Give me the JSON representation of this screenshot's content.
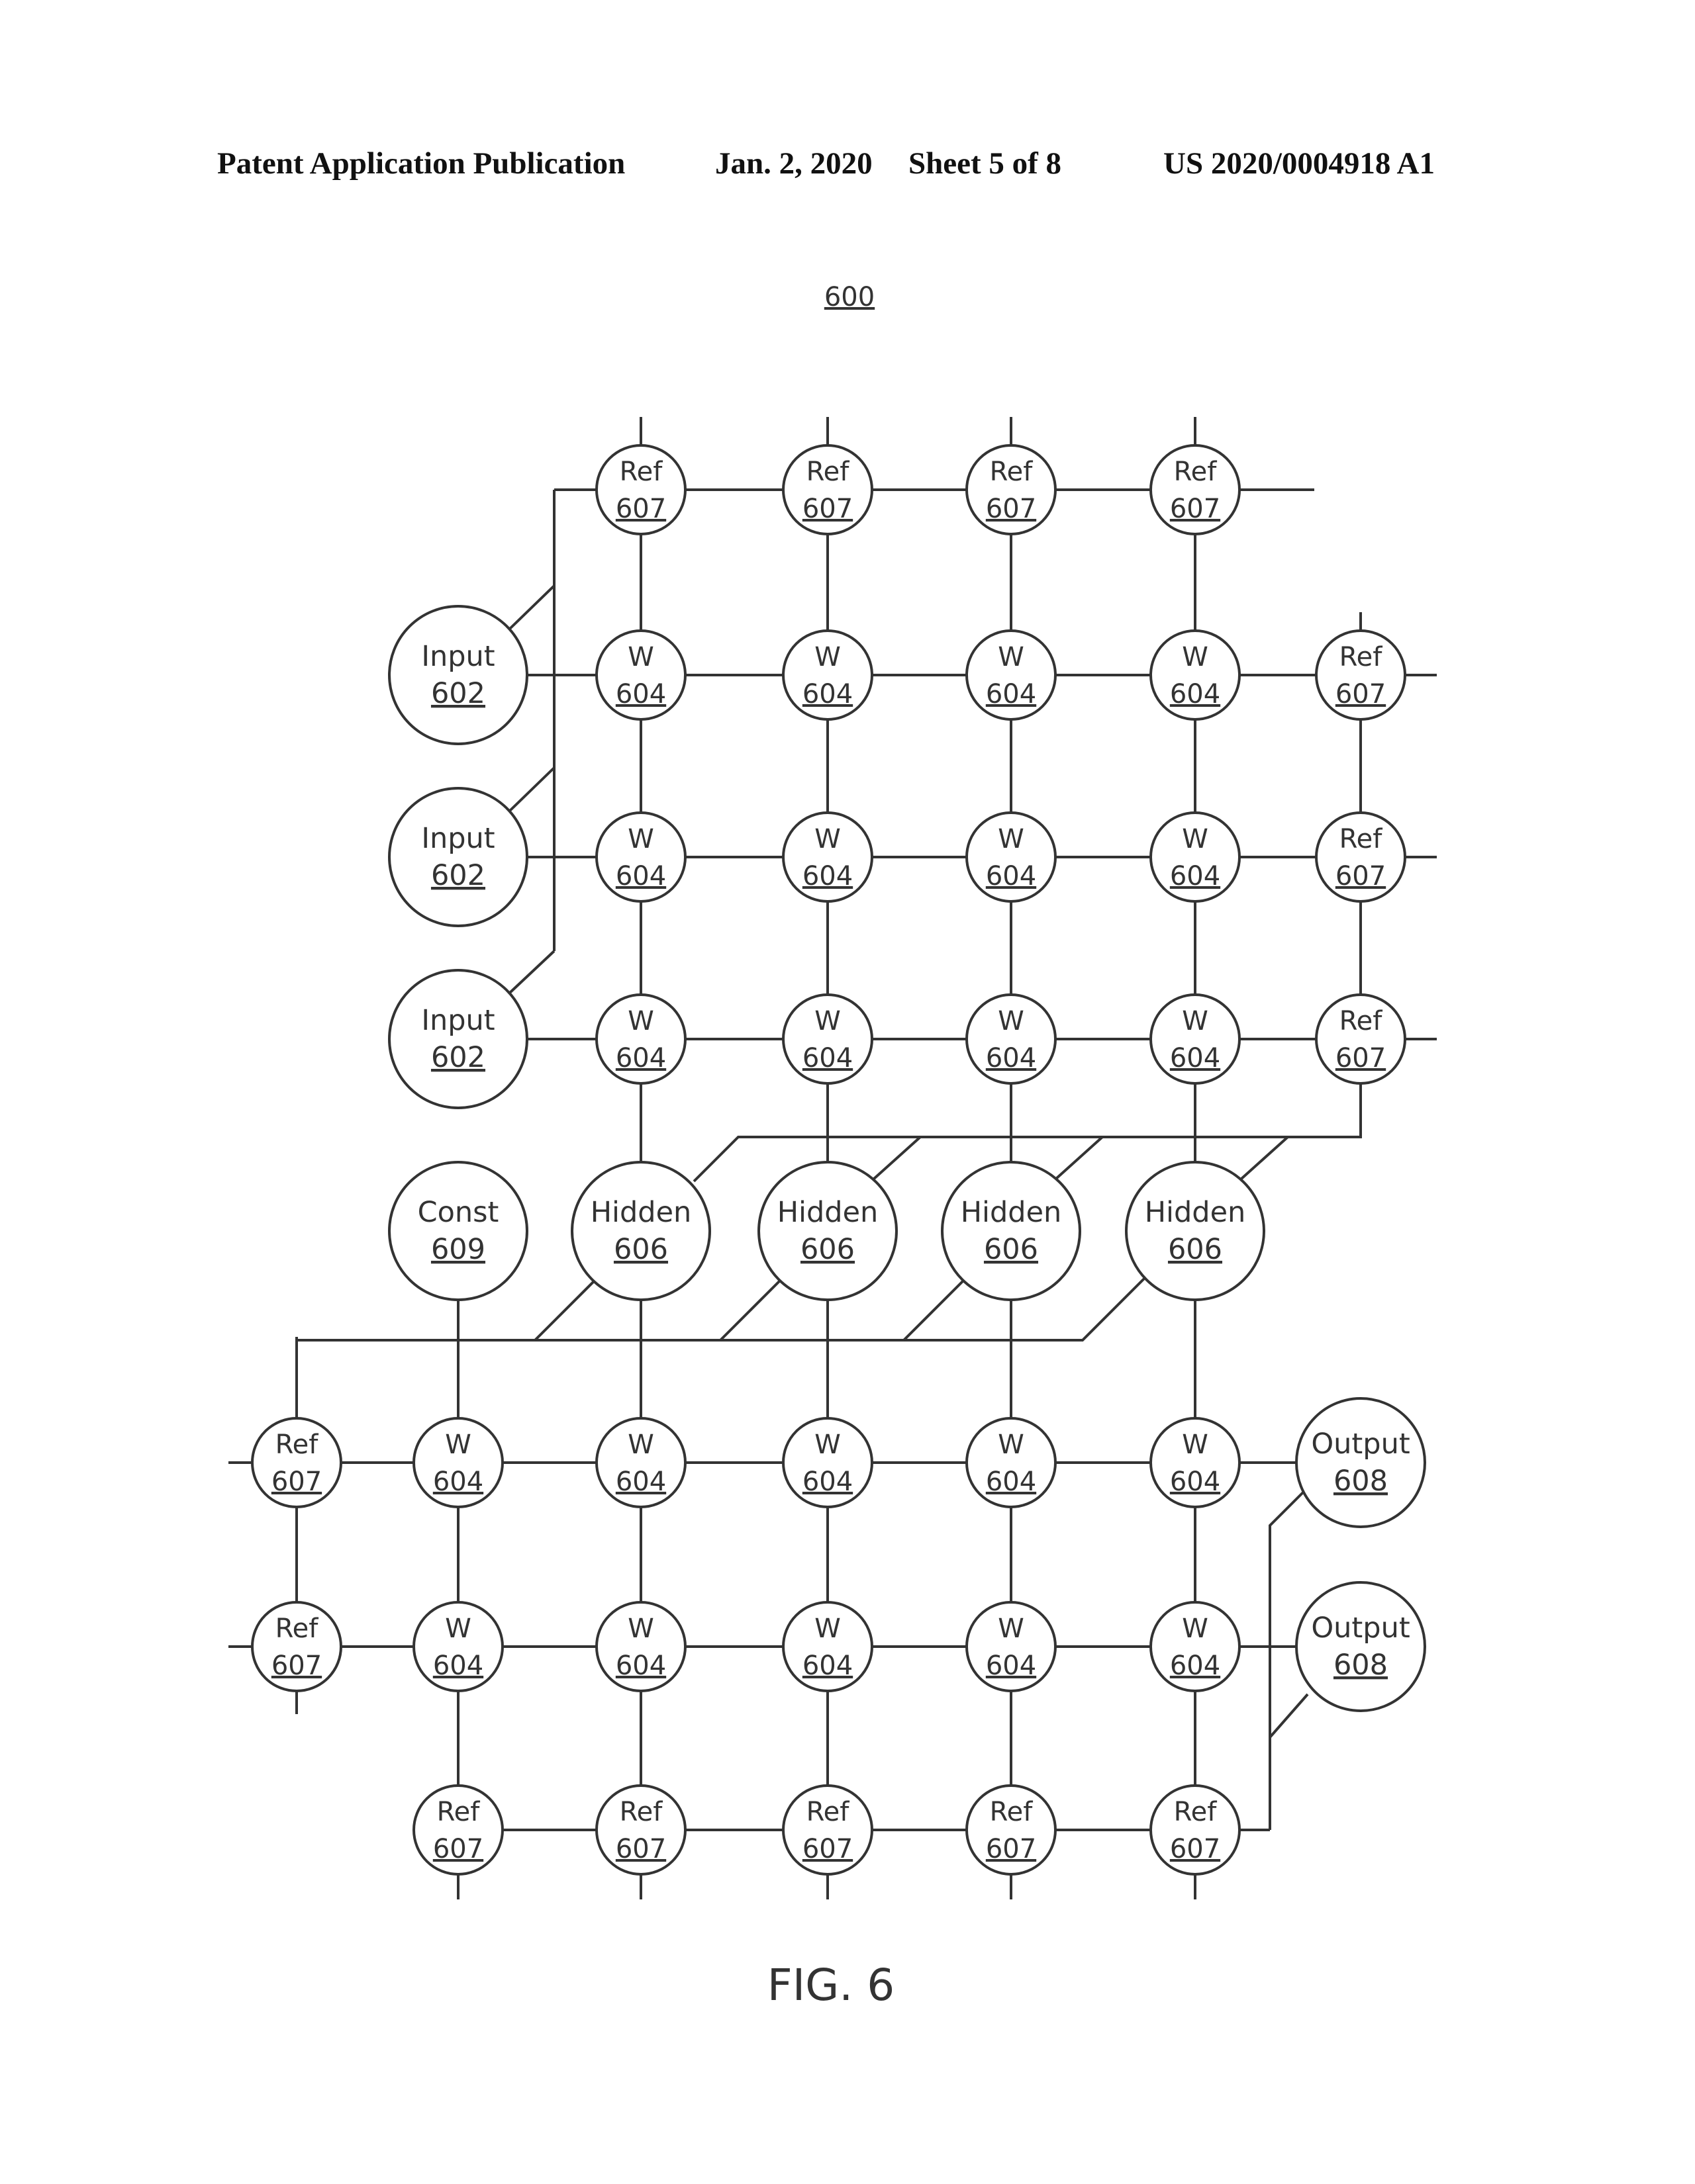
{
  "header": {
    "publication": "Patent Application Publication",
    "date": "Jan. 2, 2020",
    "sheet": "Sheet 5 of 8",
    "patent_number": "US 2020/0004918 A1"
  },
  "figure": {
    "reference_number": "600",
    "caption": "FIG. 6"
  },
  "node_types": {
    "ref": {
      "label": "Ref",
      "number": "607"
    },
    "weight": {
      "label": "W",
      "number": "604"
    },
    "input": {
      "label": "Input",
      "number": "602"
    },
    "hidden": {
      "label": "Hidden",
      "number": "606"
    },
    "const": {
      "label": "Const",
      "number": "609"
    },
    "output": {
      "label": "Output",
      "number": "608"
    }
  },
  "colors": {
    "line": "#333333",
    "text": "#333333",
    "background": "#ffffff"
  }
}
